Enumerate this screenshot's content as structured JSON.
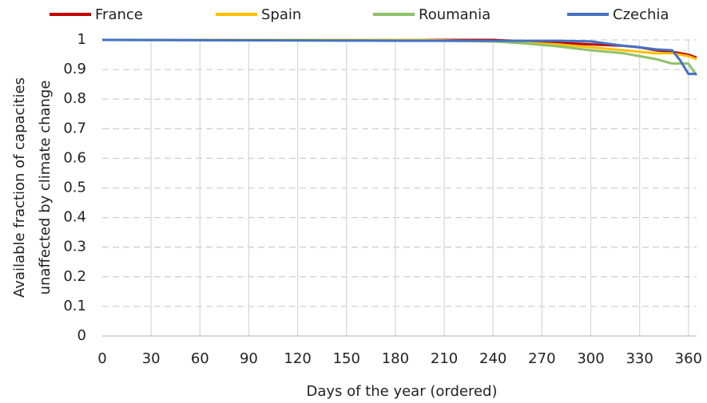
{
  "chart_data": {
    "type": "line",
    "x_label": "Days of the year (ordered)",
    "y_label": [
      "Available fraction of capacities",
      "unaffected by climate change"
    ],
    "x": [
      0,
      195,
      240,
      260,
      280,
      300,
      320,
      330,
      340,
      350,
      355,
      360,
      365
    ],
    "series": [
      {
        "name": "France",
        "color": "#c00000",
        "values": [
          1,
          1,
          1,
          0.995,
          0.99,
          0.985,
          0.98,
          0.975,
          0.965,
          0.96,
          0.955,
          0.95,
          0.94
        ]
      },
      {
        "name": "Spain",
        "color": "#ffc000",
        "values": [
          1,
          1,
          0.995,
          0.99,
          0.985,
          0.975,
          0.965,
          0.96,
          0.955,
          0.955,
          0.95,
          0.945,
          0.935
        ]
      },
      {
        "name": "Roumania",
        "color": "#8fc16a",
        "values": [
          1,
          0.998,
          0.995,
          0.988,
          0.978,
          0.965,
          0.955,
          0.945,
          0.935,
          0.92,
          0.92,
          0.92,
          0.88
        ]
      },
      {
        "name": "Czechia",
        "color": "#4472c4",
        "values": [
          1,
          0.997,
          0.997,
          0.997,
          0.997,
          0.995,
          0.98,
          0.975,
          0.968,
          0.965,
          0.93,
          0.885,
          0.885
        ]
      }
    ],
    "xlim": [
      0,
      365
    ],
    "xticks": [
      0,
      30,
      60,
      90,
      120,
      150,
      180,
      210,
      240,
      270,
      300,
      330,
      360
    ],
    "ylim": [
      0,
      1
    ],
    "yticks": [
      0,
      0.1,
      0.2,
      0.3,
      0.4,
      0.5,
      0.6,
      0.7,
      0.8,
      0.9,
      1
    ],
    "grid": true,
    "legend": "top"
  }
}
